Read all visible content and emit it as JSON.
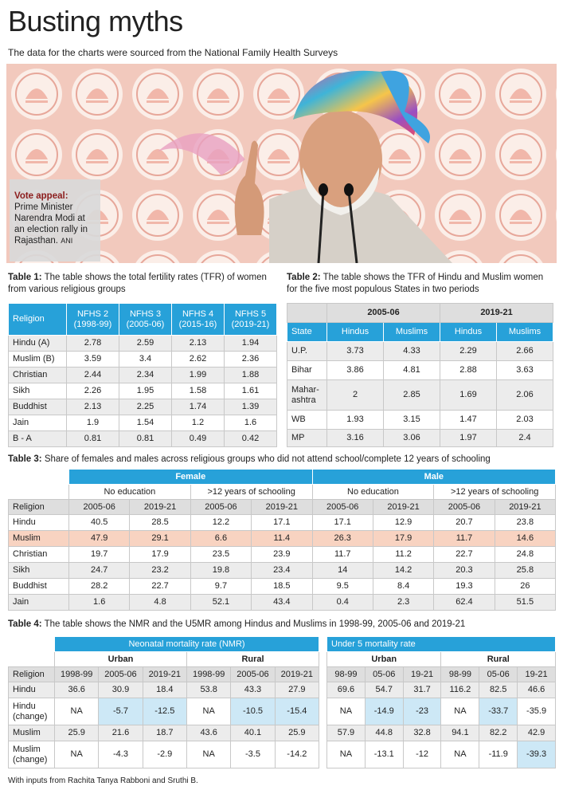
{
  "header": {
    "title": "Busting myths",
    "subtitle": "The data for the charts were sourced from the National Family Health Surveys"
  },
  "photo": {
    "caption_label": "Vote appeal:",
    "caption": "Prime Minister Narendra Modi at an election rally in Rajasthan.",
    "credit": "ANI"
  },
  "table1": {
    "label": "Table 1:",
    "caption": "The table shows the total fertility rates (TFR) of women from various religious groups",
    "columns": [
      "Religion",
      [
        "NFHS 2",
        "(1998-99)"
      ],
      [
        "NFHS 3",
        "(2005-06)"
      ],
      [
        "NFHS 4",
        "(2015-16)"
      ],
      [
        "NFHS 5",
        "(2019-21)"
      ]
    ],
    "rows": [
      [
        "Hindu (A)",
        "2.78",
        "2.59",
        "2.13",
        "1.94"
      ],
      [
        "Muslim (B)",
        "3.59",
        "3.4",
        "2.62",
        "2.36"
      ],
      [
        "Christian",
        "2.44",
        "2.34",
        "1.99",
        "1.88"
      ],
      [
        "Sikh",
        "2.26",
        "1.95",
        "1.58",
        "1.61"
      ],
      [
        "Buddhist",
        "2.13",
        "2.25",
        "1.74",
        "1.39"
      ],
      [
        "Jain",
        "1.9",
        "1.54",
        "1.2",
        "1.6"
      ],
      [
        "B - A",
        "0.81",
        "0.81",
        "0.49",
        "0.42"
      ]
    ]
  },
  "table2": {
    "label": "Table 2:",
    "caption": "The table shows the TFR of Hindu and Muslim women for the five most populous States in two periods",
    "stub": "State",
    "periods": [
      {
        "period": "2005-06",
        "columns": [
          "Hindus",
          "Muslims"
        ]
      },
      {
        "period": "2019-21",
        "columns": [
          "Hindus",
          "Muslims"
        ]
      }
    ],
    "rows": [
      [
        "U.P.",
        "3.73",
        "4.33",
        "2.29",
        "2.66"
      ],
      [
        "Bihar",
        "3.86",
        "4.81",
        "2.88",
        "3.63"
      ],
      [
        [
          "Mahar-",
          "ashtra"
        ],
        "2",
        "2.85",
        "1.69",
        "2.06"
      ],
      [
        "WB",
        "1.93",
        "3.15",
        "1.47",
        "2.03"
      ],
      [
        "MP",
        "3.16",
        "3.06",
        "1.97",
        "2.4"
      ]
    ]
  },
  "table3": {
    "label": "Table 3:",
    "caption": "Share of females and males across religious groups who did not attend school/complete 12 years of schooling",
    "stub": "Religion",
    "groups": [
      {
        "name": "Female",
        "subgroups": [
          {
            "name": "No education",
            "periods": [
              "2005-06",
              "2019-21"
            ]
          },
          {
            "name": ">12 years of schooling",
            "periods": [
              "2005-06",
              "2019-21"
            ]
          }
        ]
      },
      {
        "name": "Male",
        "subgroups": [
          {
            "name": "No education",
            "periods": [
              "2005-06",
              "2019-21"
            ]
          },
          {
            "name": ">12 years of schooling",
            "periods": [
              "2005-06",
              "2019-21"
            ]
          }
        ]
      }
    ],
    "rows": [
      [
        "Hindu",
        "40.5",
        "28.5",
        "12.2",
        "17.1",
        "17.1",
        "12.9",
        "20.7",
        "23.8"
      ],
      [
        "Muslim",
        "47.9",
        "29.1",
        "6.6",
        "11.4",
        "26.3",
        "17.9",
        "11.7",
        "14.6"
      ],
      [
        "Christian",
        "19.7",
        "17.9",
        "23.5",
        "23.9",
        "11.7",
        "11.2",
        "22.7",
        "24.8"
      ],
      [
        "Sikh",
        "24.7",
        "23.2",
        "19.8",
        "23.4",
        "14",
        "14.2",
        "20.3",
        "25.8"
      ],
      [
        "Buddhist",
        "28.2",
        "22.7",
        "9.7",
        "18.5",
        "9.5",
        "8.4",
        "19.3",
        "26"
      ],
      [
        "Jain",
        "1.6",
        "4.8",
        "52.1",
        "43.4",
        "0.4",
        "2.3",
        "62.4",
        "51.5"
      ]
    ],
    "row_highlight": [
      false,
      true,
      false,
      false,
      false,
      false
    ]
  },
  "table4": {
    "label": "Table 4:",
    "caption": "The table shows the NMR and the U5MR among Hindus and Muslims in 1998-99, 2005-06 and 2019-21",
    "stub": "Religion",
    "religions": [
      "Hindu",
      [
        "Hindu",
        "(change)"
      ],
      "Muslim",
      [
        "Muslim",
        "(change)"
      ]
    ],
    "nmr": {
      "title": "Neonatal mortality rate (NMR)",
      "areas": [
        {
          "name": "Urban",
          "periods": [
            "1998-99",
            "2005-06",
            "2019-21"
          ]
        },
        {
          "name": "Rural",
          "periods": [
            "1998-99",
            "2005-06",
            "2019-21"
          ]
        }
      ],
      "rows": [
        [
          "36.6",
          "30.9",
          "18.4",
          "53.8",
          "43.3",
          "27.9"
        ],
        [
          "NA",
          {
            "text": "-5.7",
            "highlight": true
          },
          {
            "text": "-12.5",
            "highlight": true
          },
          "NA",
          {
            "text": "-10.5",
            "highlight": true
          },
          {
            "text": "-15.4",
            "highlight": true
          }
        ],
        [
          "25.9",
          "21.6",
          "18.7",
          "43.6",
          "40.1",
          "25.9"
        ],
        [
          "NA",
          "-4.3",
          "-2.9",
          "NA",
          "-3.5",
          "-14.2"
        ]
      ]
    },
    "u5mr": {
      "title": "Under 5 mortality rate",
      "areas": [
        {
          "name": "Urban",
          "periods": [
            "98-99",
            "05-06",
            "19-21"
          ]
        },
        {
          "name": "Rural",
          "periods": [
            "98-99",
            "05-06",
            "19-21"
          ]
        }
      ],
      "rows": [
        [
          "69.6",
          "54.7",
          "31.7",
          "116.2",
          "82.5",
          "46.6"
        ],
        [
          "NA",
          {
            "text": "-14.9",
            "highlight": true
          },
          {
            "text": "-23",
            "highlight": true
          },
          "NA",
          {
            "text": "-33.7",
            "highlight": true
          },
          "-35.9"
        ],
        [
          "57.9",
          "44.8",
          "32.8",
          "94.1",
          "82.2",
          "42.9"
        ],
        [
          "NA",
          "-13.1",
          "-12",
          "NA",
          "-11.9",
          {
            "text": "-39.3",
            "highlight": true
          }
        ]
      ]
    }
  },
  "footer": {
    "credit": "With inputs from Rachita Tanya Rabboni and Sruthi B."
  }
}
